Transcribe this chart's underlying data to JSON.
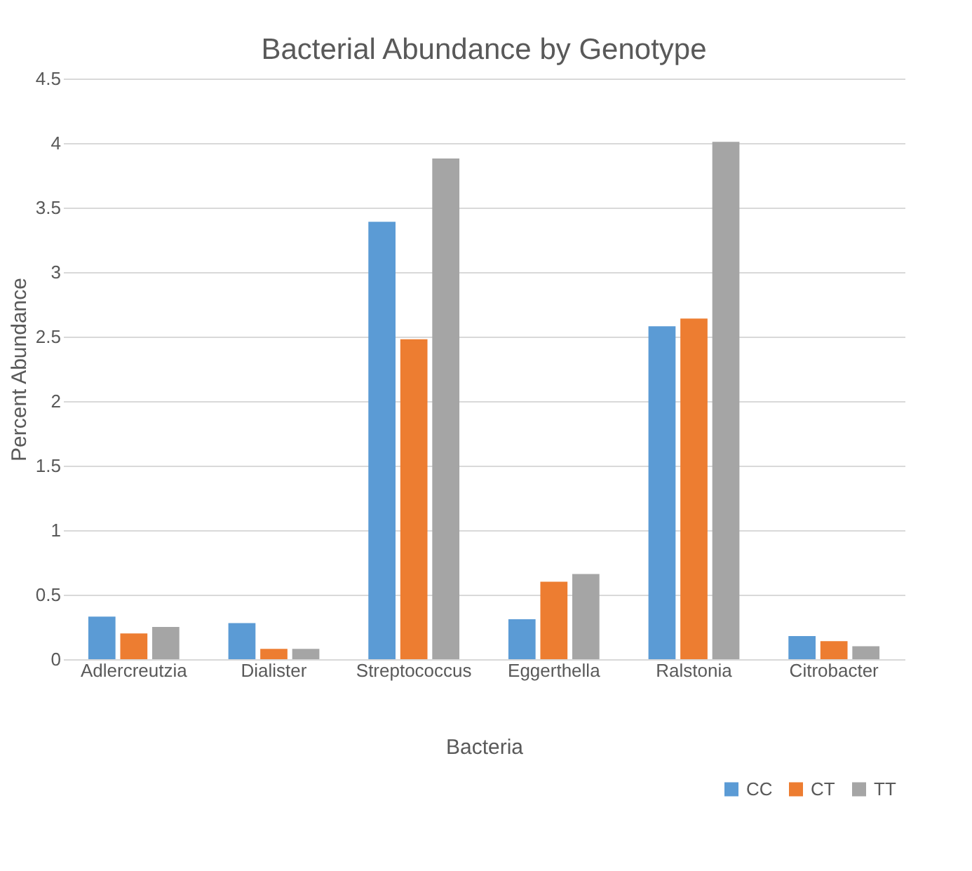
{
  "chart_data": {
    "type": "bar",
    "title": "Bacterial Abundance by Genotype",
    "xlabel": "Bacteria",
    "ylabel": "Percent Abundance",
    "categories": [
      "Adlercreutzia",
      "Dialister",
      "Streptococcus",
      "Eggerthella",
      "Ralstonia",
      "Citrobacter"
    ],
    "series": [
      {
        "name": "CC",
        "color": "#5b9bd5",
        "values": [
          0.33,
          0.28,
          3.39,
          0.31,
          2.58,
          0.18
        ]
      },
      {
        "name": "CT",
        "color": "#ed7d31",
        "values": [
          0.2,
          0.08,
          2.48,
          0.6,
          2.64,
          0.14
        ]
      },
      {
        "name": "TT",
        "color": "#a5a5a5",
        "values": [
          0.25,
          0.08,
          3.88,
          0.66,
          4.01,
          0.1
        ]
      }
    ],
    "ylim": [
      0,
      4.5
    ],
    "yticks": [
      0,
      0.5,
      1,
      1.5,
      2,
      2.5,
      3,
      3.5,
      4,
      4.5
    ],
    "grid": "y",
    "legend": "bottom right"
  }
}
